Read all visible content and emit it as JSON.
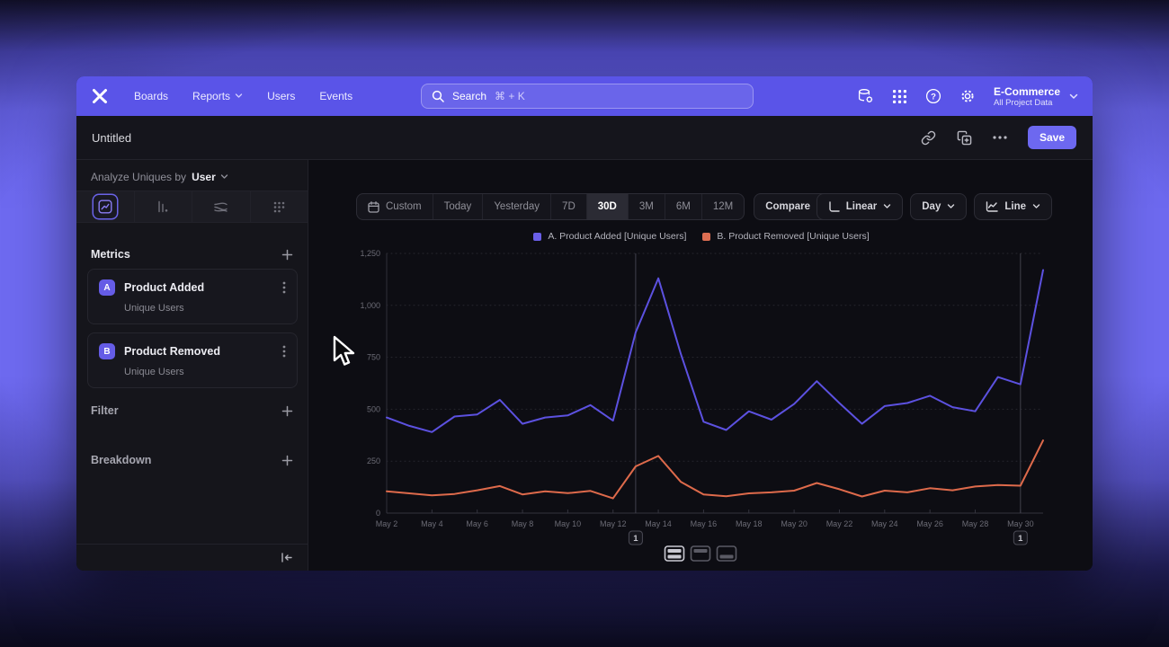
{
  "topnav": {
    "nav_items": [
      {
        "label": "Boards"
      },
      {
        "label": "Reports",
        "dropdown": true
      },
      {
        "label": "Users"
      },
      {
        "label": "Events"
      }
    ],
    "search": {
      "placeholder": "Search",
      "shortcut": "⌘ + K"
    },
    "icons": [
      "data-connections-icon",
      "apps-grid-icon",
      "help-icon",
      "settings-gear-icon"
    ],
    "project": {
      "name": "E-Commerce",
      "scope": "All Project Data"
    }
  },
  "report_bar": {
    "title": "Untitled",
    "save_label": "Save"
  },
  "sidebar": {
    "analyze_prefix": "Analyze Uniques by",
    "analyze_value": "User",
    "chart_type_tabs": [
      "insights",
      "bar",
      "flow",
      "retention"
    ],
    "selected_tab": "insights",
    "metrics_label": "Metrics",
    "metrics": [
      {
        "badge": "A",
        "name": "Product Added",
        "subtitle": "Unique Users"
      },
      {
        "badge": "B",
        "name": "Product Removed",
        "subtitle": "Unique Users"
      }
    ],
    "filter_label": "Filter",
    "breakdown_label": "Breakdown"
  },
  "toolbar": {
    "ranges": [
      "Custom",
      "Today",
      "Yesterday",
      "7D",
      "30D",
      "3M",
      "6M",
      "12M"
    ],
    "selected_range": "30D",
    "compare_label": "Compare",
    "scale_label": "Linear",
    "interval_label": "Day",
    "chart_type_label": "Line"
  },
  "chart_data": {
    "type": "line",
    "title": "",
    "x": [
      "May 2",
      "May 3",
      "May 4",
      "May 5",
      "May 6",
      "May 7",
      "May 8",
      "May 9",
      "May 10",
      "May 11",
      "May 12",
      "May 13",
      "May 14",
      "May 15",
      "May 16",
      "May 17",
      "May 18",
      "May 19",
      "May 20",
      "May 21",
      "May 22",
      "May 23",
      "May 24",
      "May 25",
      "May 26",
      "May 27",
      "May 28",
      "May 29",
      "May 30",
      "May 31"
    ],
    "x_tick_every": 2,
    "y_ticks": [
      0,
      250,
      500,
      750,
      1000,
      1250
    ],
    "y_max": 1250,
    "grid": "horizontal-dotted",
    "legend_position": "top-center",
    "series": [
      {
        "name": "A. Product Added [Unique Users]",
        "color": "#5c51e0",
        "swatch": "#6a5fe8",
        "values": [
          460,
          420,
          390,
          465,
          475,
          545,
          430,
          460,
          470,
          520,
          445,
          870,
          1130,
          765,
          440,
          400,
          490,
          450,
          525,
          635,
          530,
          430,
          515,
          530,
          565,
          510,
          490,
          655,
          620,
          1170
        ]
      },
      {
        "name": "B. Product Removed [Unique Users]",
        "color": "#de6a4b",
        "swatch": "#dd6e52",
        "values": [
          105,
          95,
          85,
          92,
          110,
          130,
          90,
          105,
          96,
          107,
          71,
          225,
          275,
          150,
          90,
          81,
          95,
          100,
          108,
          145,
          115,
          80,
          108,
          100,
          120,
          110,
          128,
          135,
          132,
          350
        ]
      }
    ],
    "annotations": [
      {
        "x": "May 13",
        "label": "1"
      },
      {
        "x": "May 30",
        "label": "1"
      }
    ]
  },
  "colors": {
    "accent": "#6c67ee",
    "nav": "#5a54e8",
    "save_button": "#6d68f0"
  }
}
